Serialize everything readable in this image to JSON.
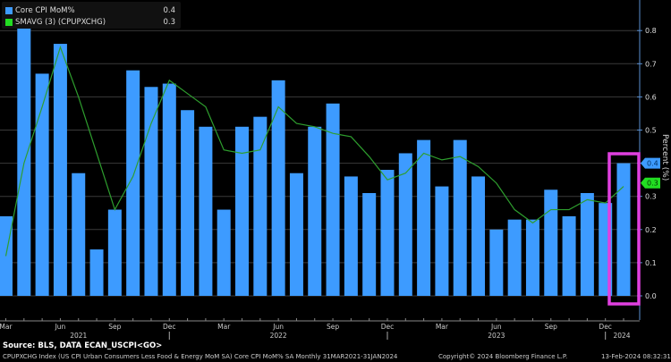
{
  "legend": [
    {
      "label": "Core CPI MoM%",
      "value": "0.4",
      "color": "#3d9bff"
    },
    {
      "label": "SMAVG (3) (CPUPXCHG)",
      "value": "0.3",
      "color": "#22dd22"
    }
  ],
  "footer": {
    "source": "Source: BLS, DATA ECAN_USCPI<GO>",
    "description": "CPUPXCHG Index (US CPI Urban Consumers Less Food & Energy MoM SA) Core CPI MoM% SA  Monthly 31MAR2021-31JAN2024",
    "copyright": "Copyright© 2024 Bloomberg Finance L.P.",
    "timestamp": "13-Feb-2024 08:32:31"
  },
  "chart_data": {
    "type": "bar",
    "title": "",
    "ylabel": "Percent (%)",
    "xlabel": "",
    "ylim": [
      -0.08,
      0.89
    ],
    "yticks": [
      "0.0",
      "0.1",
      "0.2",
      "0.3",
      "0.4",
      "0.5",
      "0.6",
      "0.7",
      "0.8"
    ],
    "grid": true,
    "legend_position": "top-left",
    "categories": [
      "Mar 2021",
      "Apr 2021",
      "May 2021",
      "Jun 2021",
      "Jul 2021",
      "Aug 2021",
      "Sep 2021",
      "Oct 2021",
      "Nov 2021",
      "Dec 2021",
      "Jan 2022",
      "Feb 2022",
      "Mar 2022",
      "Apr 2022",
      "May 2022",
      "Jun 2022",
      "Jul 2022",
      "Aug 2022",
      "Sep 2022",
      "Oct 2022",
      "Nov 2022",
      "Dec 2022",
      "Jan 2023",
      "Feb 2023",
      "Mar 2023",
      "Apr 2023",
      "May 2023",
      "Jun 2023",
      "Jul 2023",
      "Aug 2023",
      "Sep 2023",
      "Oct 2023",
      "Nov 2023",
      "Dec 2023",
      "Jan 2024"
    ],
    "x_tick_labels": [
      {
        "index": 0,
        "label": "Mar"
      },
      {
        "index": 3,
        "label": "Jun"
      },
      {
        "index": 6,
        "label": "Sep"
      },
      {
        "index": 9,
        "label": "Dec"
      },
      {
        "index": 12,
        "label": "Mar"
      },
      {
        "index": 15,
        "label": "Jun"
      },
      {
        "index": 18,
        "label": "Sep"
      },
      {
        "index": 21,
        "label": "Dec"
      },
      {
        "index": 24,
        "label": "Mar"
      },
      {
        "index": 27,
        "label": "Jun"
      },
      {
        "index": 30,
        "label": "Sep"
      },
      {
        "index": 33,
        "label": "Dec"
      }
    ],
    "year_labels": [
      {
        "index": 4,
        "label": "2021"
      },
      {
        "index": 15,
        "label": "2022"
      },
      {
        "index": 27,
        "label": "2023"
      },
      {
        "index": 34,
        "label": "2024"
      }
    ],
    "year_separators": [
      9.5,
      21.5,
      33.5
    ],
    "series": [
      {
        "name": "Core CPI MoM%",
        "type": "bar",
        "color": "#3d9bff",
        "values": [
          0.24,
          0.81,
          0.67,
          0.76,
          0.37,
          0.14,
          0.26,
          0.68,
          0.63,
          0.64,
          0.56,
          0.51,
          0.26,
          0.51,
          0.54,
          0.65,
          0.37,
          0.51,
          0.58,
          0.36,
          0.31,
          0.38,
          0.43,
          0.47,
          0.33,
          0.47,
          0.36,
          0.2,
          0.23,
          0.23,
          0.32,
          0.24,
          0.31,
          0.28,
          0.4
        ]
      },
      {
        "name": "SMAVG (3) (CPUPXCHG)",
        "type": "line",
        "color": "#2e9e2e",
        "values": [
          0.12,
          0.4,
          0.57,
          0.75,
          0.6,
          0.43,
          0.26,
          0.36,
          0.52,
          0.65,
          0.61,
          0.57,
          0.44,
          0.43,
          0.44,
          0.57,
          0.52,
          0.51,
          0.49,
          0.48,
          0.42,
          0.35,
          0.37,
          0.43,
          0.41,
          0.42,
          0.39,
          0.34,
          0.26,
          0.22,
          0.26,
          0.26,
          0.29,
          0.28,
          0.33
        ]
      }
    ],
    "current_value_tags": [
      {
        "series": "Core CPI MoM%",
        "label": "0.4",
        "value": 0.4,
        "color": "#3d9bff"
      },
      {
        "series": "SMAVG (3) (CPUPXCHG)",
        "label": "0.3",
        "value": 0.33,
        "color": "#22dd22"
      }
    ],
    "highlight": {
      "index": 34,
      "color": "#e040e0"
    }
  }
}
